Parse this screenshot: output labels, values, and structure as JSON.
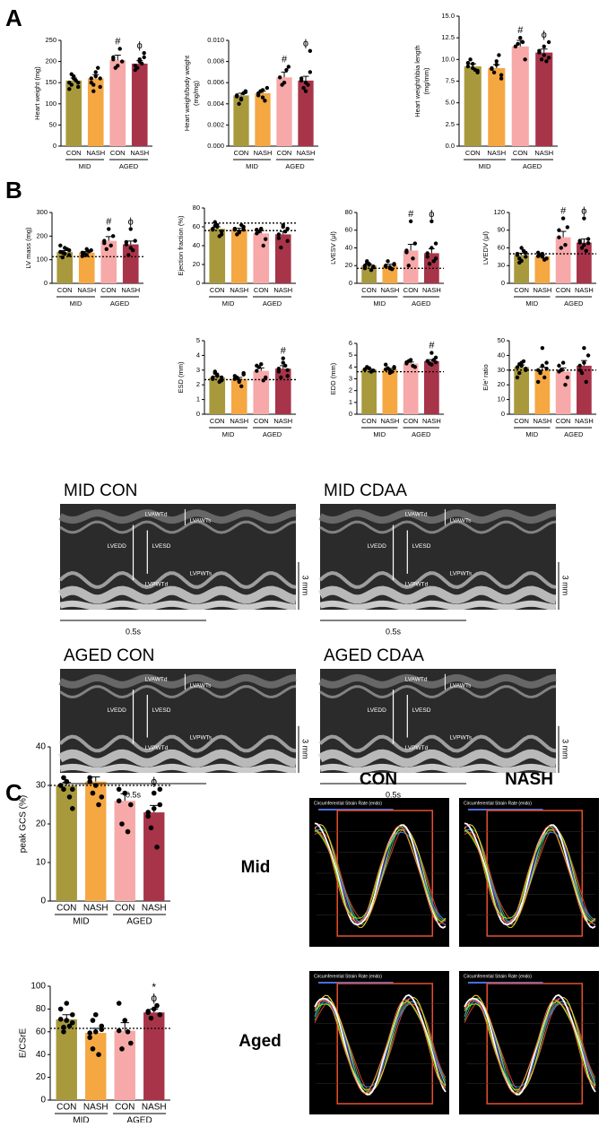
{
  "panels": [
    "A",
    "B",
    "C"
  ],
  "chart_data": [
    {
      "type": "bar",
      "ylabel": "Heart weight (mg)",
      "categories": [
        "CON",
        "NASH",
        "CON",
        "NASH"
      ],
      "groups": [
        "MID",
        "AGED"
      ],
      "colors": [
        "#a89a3c",
        "#f5a742",
        "#f7a8a8",
        "#a8344a"
      ],
      "values": [
        155,
        160,
        203,
        195
      ],
      "errors": [
        6,
        9,
        12,
        7
      ],
      "points": [
        [
          150,
          160,
          140,
          170,
          155,
          135,
          165,
          150,
          145
        ],
        [
          160,
          175,
          140,
          130,
          185,
          150,
          165,
          160,
          145
        ],
        [
          210,
          190,
          200,
          185,
          230,
          205
        ],
        [
          190,
          200,
          210,
          185,
          195,
          180,
          205,
          220
        ]
      ],
      "ylim": [
        0,
        250
      ],
      "yticks": [
        0,
        50,
        100,
        150,
        200,
        250
      ],
      "annotations": [
        [],
        [],
        [
          "#"
        ],
        [
          "ϕ"
        ]
      ]
    },
    {
      "type": "bar",
      "ylabel": [
        "Heart weight/body weight",
        "(mg/mg)"
      ],
      "categories": [
        "CON",
        "NASH",
        "CON",
        "NASH"
      ],
      "groups": [
        "MID",
        "AGED"
      ],
      "colors": [
        "#a89a3c",
        "#f5a742",
        "#f7a8a8",
        "#a8344a"
      ],
      "values": [
        0.0048,
        0.005,
        0.0065,
        0.0062
      ],
      "errors": [
        0.0002,
        0.0002,
        0.0005,
        0.0004
      ],
      "points": [
        [
          0.0048,
          0.0045,
          0.0052,
          0.004,
          0.005,
          0.0047,
          0.0044,
          0.0051
        ],
        [
          0.005,
          0.0046,
          0.0055,
          0.0052,
          0.0043,
          0.0048,
          0.0053
        ],
        [
          0.0065,
          0.006,
          0.0075,
          0.0058,
          0.0072
        ],
        [
          0.0062,
          0.006,
          0.009,
          0.0055,
          0.0058,
          0.0064,
          0.0052,
          0.007
        ]
      ],
      "ylim": [
        0,
        0.01
      ],
      "yticks": [
        {
          "value": 0,
          "label": "0.000"
        },
        {
          "value": 0.002,
          "label": "0.002"
        },
        {
          "value": 0.004,
          "label": "0.004"
        },
        {
          "value": 0.006,
          "label": "0.006"
        },
        {
          "value": 0.008,
          "label": "0.008"
        },
        {
          "value": 0.01,
          "label": "0.010"
        }
      ],
      "annotations": [
        [],
        [],
        [
          "#"
        ],
        [
          "ϕ"
        ]
      ]
    },
    {
      "type": "bar",
      "ylabel": [
        "Heart weight/tibia length",
        "(mg/mm)"
      ],
      "categories": [
        "CON",
        "NASH",
        "CON",
        "NASH"
      ],
      "groups": [
        "MID",
        "AGED"
      ],
      "colors": [
        "#a89a3c",
        "#f5a742",
        "#f7a8a8",
        "#a8344a"
      ],
      "values": [
        9.2,
        9,
        11.5,
        10.8
      ],
      "errors": [
        0.3,
        0.4,
        0.7,
        0.4
      ],
      "points": [
        [
          9.2,
          9.5,
          8.5,
          10,
          8.8,
          9.6,
          9,
          8.7
        ],
        [
          9,
          9.8,
          7.8,
          8.5,
          10.5,
          8.9,
          9.4,
          8.2
        ],
        [
          11.5,
          12.5,
          10,
          11.8,
          12
        ],
        [
          10.8,
          11.5,
          12,
          10,
          9.8,
          11,
          10.5,
          10.2
        ]
      ],
      "ylim": [
        0,
        15
      ],
      "yticks": [
        {
          "value": 0,
          "label": "0.0"
        },
        {
          "value": 2.5,
          "label": "2.5"
        },
        {
          "value": 5,
          "label": "5.0"
        },
        {
          "value": 7.5,
          "label": "7.5"
        },
        {
          "value": 10,
          "label": "10.0"
        },
        {
          "value": 12.5,
          "label": "12.5"
        },
        {
          "value": 15,
          "label": "15.0"
        }
      ],
      "annotations": [
        [],
        [],
        [
          "#"
        ],
        [
          "ϕ"
        ]
      ]
    },
    {
      "type": "bar",
      "ylabel": "LV mass (mg)",
      "categories": [
        "CON",
        "NASH",
        "CON",
        "NASH"
      ],
      "groups": [
        "MID",
        "AGED"
      ],
      "colors": [
        "#a89a3c",
        "#f5a742",
        "#f7a8a8",
        "#a8344a"
      ],
      "values": [
        133,
        130,
        180,
        165
      ],
      "errors": [
        6,
        5,
        18,
        14
      ],
      "points": [
        [
          133,
          150,
          120,
          110,
          145,
          160,
          125,
          140,
          130
        ],
        [
          130,
          120,
          140,
          125,
          135,
          115,
          145
        ],
        [
          180,
          230,
          200,
          145,
          160,
          170
        ],
        [
          165,
          230,
          180,
          120,
          140,
          175,
          150
        ]
      ],
      "ylim": [
        0,
        300
      ],
      "yticks": [
        0,
        100,
        200,
        300
      ],
      "reference_lines": [
        113
      ],
      "annotations": [
        [],
        [],
        [
          "#"
        ],
        [
          "ϕ"
        ]
      ]
    },
    {
      "type": "bar",
      "ylabel": "Ejection fraction (%)",
      "categories": [
        "CON",
        "NASH",
        "CON",
        "NASH"
      ],
      "groups": [
        "MID",
        "AGED"
      ],
      "colors": [
        "#a89a3c",
        "#f5a742",
        "#f7a8a8",
        "#a8344a"
      ],
      "values": [
        58,
        57,
        53,
        52
      ],
      "errors": [
        2,
        1.5,
        3,
        3
      ],
      "points": [
        [
          58,
          62,
          55,
          65,
          50,
          57,
          60,
          52,
          61
        ],
        [
          57,
          55,
          60,
          52,
          62,
          58,
          54,
          57
        ],
        [
          53,
          58,
          47,
          55,
          40,
          57
        ],
        [
          52,
          60,
          45,
          38,
          55,
          48,
          62,
          58
        ]
      ],
      "ylim": [
        0,
        80
      ],
      "yticks": [
        0,
        20,
        40,
        60,
        80
      ],
      "reference_lines": [
        64,
        56
      ],
      "annotations": [
        [],
        [],
        [],
        []
      ]
    },
    {
      "type": "bar",
      "ylabel": "LVESV (μl)",
      "categories": [
        "CON",
        "NASH",
        "CON",
        "NASH"
      ],
      "groups": [
        "MID",
        "AGED"
      ],
      "colors": [
        "#a89a3c",
        "#f5a742",
        "#f7a8a8",
        "#a8344a"
      ],
      "values": [
        20,
        20,
        37,
        34
      ],
      "errors": [
        1.5,
        1.5,
        7,
        5
      ],
      "points": [
        [
          20,
          22,
          18,
          25,
          15,
          17,
          21,
          19,
          23
        ],
        [
          20,
          18,
          22,
          25,
          16,
          19,
          17,
          21
        ],
        [
          37,
          70,
          45,
          20,
          28,
          35
        ],
        [
          34,
          70,
          45,
          22,
          25,
          30,
          40,
          28
        ]
      ],
      "ylim": [
        0,
        80
      ],
      "yticks": [
        0,
        20,
        40,
        60,
        80
      ],
      "reference_lines": [
        17
      ],
      "annotations": [
        [],
        [],
        [
          "#"
        ],
        [
          "ϕ"
        ]
      ]
    },
    {
      "type": "bar",
      "ylabel": "LVEDV (μl)",
      "categories": [
        "CON",
        "NASH",
        "CON",
        "NASH"
      ],
      "groups": [
        "MID",
        "AGED"
      ],
      "colors": [
        "#a89a3c",
        "#f5a742",
        "#f7a8a8",
        "#a8344a"
      ],
      "values": [
        48,
        46,
        78,
        69
      ],
      "errors": [
        3,
        2,
        10,
        6
      ],
      "points": [
        [
          48,
          60,
          45,
          35,
          55,
          50,
          38,
          52,
          42
        ],
        [
          46,
          50,
          42,
          48,
          40,
          52,
          45
        ],
        [
          78,
          110,
          95,
          60,
          65,
          90
        ],
        [
          69,
          110,
          75,
          60,
          55,
          72,
          65,
          68
        ]
      ],
      "ylim": [
        0,
        120
      ],
      "yticks": [
        0,
        30,
        60,
        90,
        120
      ],
      "reference_lines": [
        50
      ],
      "annotations": [
        [],
        [],
        [
          "#"
        ],
        [
          "ϕ"
        ]
      ]
    },
    {
      "type": "bar",
      "ylabel": "ESD (mm)",
      "categories": [
        "CON",
        "NASH",
        "CON",
        "NASH"
      ],
      "groups": [
        "MID",
        "AGED"
      ],
      "colors": [
        "#a89a3c",
        "#f5a742",
        "#f7a8a8",
        "#a8344a"
      ],
      "values": [
        2.5,
        2.4,
        2.95,
        3.1
      ],
      "errors": [
        0.08,
        0.1,
        0.2,
        0.2
      ],
      "points": [
        [
          2.5,
          2.7,
          2.3,
          2.8,
          2.2,
          2.4,
          2.6,
          2.5,
          2.9
        ],
        [
          2.4,
          2.2,
          2.7,
          2.5,
          1.9,
          2.6,
          2.3,
          2.8
        ],
        [
          2.95,
          3.4,
          2.5,
          3.2,
          2.3,
          3.3
        ],
        [
          3.1,
          3.8,
          2.6,
          2.5,
          3.3,
          2.9,
          3.5,
          3
        ]
      ],
      "ylim": [
        0,
        5
      ],
      "yticks": [
        0,
        1,
        2,
        3,
        4,
        5
      ],
      "reference_lines": [
        2.35
      ],
      "annotations": [
        [],
        [],
        [],
        [
          "#"
        ]
      ]
    },
    {
      "type": "bar",
      "ylabel": "EDD (mm)",
      "categories": [
        "CON",
        "NASH",
        "CON",
        "NASH"
      ],
      "groups": [
        "MID",
        "AGED"
      ],
      "colors": [
        "#a89a3c",
        "#f5a742",
        "#f7a8a8",
        "#a8344a"
      ],
      "values": [
        3.8,
        3.8,
        4.3,
        4.5
      ],
      "errors": [
        0.05,
        0.08,
        0.12,
        0.12
      ],
      "points": [
        [
          3.8,
          3.9,
          3.7,
          4,
          3.6,
          3.8,
          3.9,
          3.7
        ],
        [
          3.8,
          3.5,
          4,
          3.9,
          3.6,
          4.2,
          3.7,
          3.9
        ],
        [
          4.3,
          4.6,
          4,
          4.5,
          4.1,
          4.4
        ],
        [
          4.5,
          5.2,
          4.4,
          4.3,
          4.6,
          4.5,
          4.2,
          4.8
        ]
      ],
      "ylim": [
        0,
        6
      ],
      "yticks": [
        0,
        1,
        2,
        3,
        4,
        5,
        6
      ],
      "reference_lines": [
        3.6
      ],
      "annotations": [
        [],
        [],
        [],
        [
          "#"
        ]
      ]
    },
    {
      "type": "bar",
      "ylabel": "E/e' ratio",
      "categories": [
        "CON",
        "NASH",
        "CON",
        "NASH"
      ],
      "groups": [
        "MID",
        "AGED"
      ],
      "colors": [
        "#a89a3c",
        "#f5a742",
        "#f7a8a8",
        "#a8344a"
      ],
      "values": [
        32,
        30,
        29,
        33
      ],
      "errors": [
        1.5,
        2,
        2.5,
        3.5
      ],
      "points": [
        [
          32,
          35,
          30,
          28,
          36,
          25,
          33,
          31,
          34
        ],
        [
          30,
          45,
          35,
          28,
          25,
          22,
          33,
          31,
          29
        ],
        [
          29,
          35,
          25,
          30,
          20,
          33
        ],
        [
          33,
          45,
          40,
          28,
          22,
          30,
          35
        ]
      ],
      "ylim": [
        0,
        50
      ],
      "yticks": [
        0,
        10,
        20,
        30,
        40,
        50
      ],
      "reference_lines": [
        30
      ],
      "annotations": [
        [],
        [],
        [],
        []
      ]
    },
    {
      "type": "bar",
      "ylabel": "peak GCS (%)",
      "categories": [
        "CON",
        "NASH",
        "CON",
        "NASH"
      ],
      "groups": [
        "MID",
        "AGED"
      ],
      "colors": [
        "#a89a3c",
        "#f5a742",
        "#f7a8a8",
        "#a8344a"
      ],
      "values": [
        30,
        31,
        26,
        23
      ],
      "errors": [
        0.8,
        1.2,
        1.8,
        1.8
      ],
      "points": [
        [
          30,
          31,
          29,
          32,
          27,
          30,
          31,
          24,
          29
        ],
        [
          31,
          36,
          34,
          28,
          25,
          32,
          30,
          27,
          35
        ],
        [
          26,
          28,
          25,
          20,
          18,
          29
        ],
        [
          23,
          28,
          25,
          19,
          14,
          22,
          24,
          29
        ]
      ],
      "ylim": [
        0,
        40
      ],
      "yticks": [
        0,
        10,
        20,
        30,
        40
      ],
      "reference_lines": [
        30
      ],
      "annotations": [
        [],
        [],
        [],
        [
          "ϕ"
        ]
      ]
    },
    {
      "type": "bar",
      "ylabel": "E/CSrE",
      "categories": [
        "CON",
        "NASH",
        "CON",
        "NASH"
      ],
      "groups": [
        "MID",
        "AGED"
      ],
      "colors": [
        "#a89a3c",
        "#f5a742",
        "#f7a8a8",
        "#a8344a"
      ],
      "values": [
        71,
        59,
        61,
        77
      ],
      "errors": [
        4,
        4,
        7,
        3
      ],
      "points": [
        [
          71,
          85,
          75,
          60,
          65,
          80,
          70,
          68,
          64
        ],
        [
          59,
          75,
          65,
          45,
          40,
          55,
          60,
          62,
          70
        ],
        [
          61,
          70,
          50,
          45,
          60,
          85
        ],
        [
          77,
          80,
          75,
          72,
          83,
          78
        ]
      ],
      "ylim": [
        0,
        100
      ],
      "yticks": [
        0,
        20,
        40,
        60,
        80,
        100
      ],
      "reference_lines": [
        63
      ],
      "annotations": [
        [],
        [],
        [],
        [
          "*",
          "ϕ"
        ]
      ]
    }
  ],
  "echo_images": [
    {
      "title": "MID CON",
      "labels": [
        "LVAWTd",
        "LVAWTs",
        "LVEDD",
        "LVESD",
        "LVPWTd",
        "LVPWTs"
      ],
      "scale_y": "3 mm",
      "scale_x": "0.5s"
    },
    {
      "title": "MID CDAA",
      "labels": [
        "LVAWTd",
        "LVAWTs",
        "LVEDD",
        "LVESD",
        "LVPWTd",
        "LVPWTs"
      ],
      "scale_y": "3 mm",
      "scale_x": "0.5s"
    },
    {
      "title": "AGED CON",
      "labels": [
        "LVAWTd",
        "LVAWTs",
        "LVEDD",
        "LVESD",
        "LVPWTd",
        "LVPWTs"
      ],
      "scale_y": "3 mm",
      "scale_x": "0.5s"
    },
    {
      "title": "AGED CDAA",
      "labels": [
        "LVAWTd",
        "LVAWTs",
        "LVEDD",
        "LVESD",
        "LVPWTd",
        "LVPWTs"
      ],
      "scale_y": "3 mm",
      "scale_x": "0.5s"
    }
  ],
  "strain_rate": {
    "columns": [
      "CON",
      "NASH"
    ],
    "rows": [
      "Mid",
      "Aged"
    ],
    "plot_title": "Circumferential Strain Rate (endo)"
  }
}
